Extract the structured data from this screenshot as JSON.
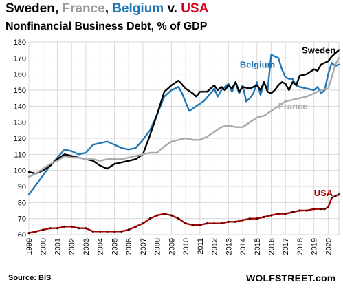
{
  "title_parts": [
    {
      "text": "Sweden",
      "color": "#000000"
    },
    {
      "text": ", ",
      "color": "#000000"
    },
    {
      "text": "France",
      "color": "#9a9a9a"
    },
    {
      "text": ", ",
      "color": "#000000"
    },
    {
      "text": "Belgium",
      "color": "#1f77b4"
    },
    {
      "text": " v. ",
      "color": "#000000"
    },
    {
      "text": "USA",
      "color": "#d0021b"
    }
  ],
  "subtitle": "Nonfinancial Business Debt, % of GDP",
  "source": "Source: BIS",
  "brand": "WOLFSTREET.com",
  "chart_data": {
    "type": "line",
    "title": "Sweden, France, Belgium v. USA",
    "subtitle": "Nonfinancial Business Debt, % of GDP",
    "xlabel": "",
    "ylabel": "",
    "xlim": [
      1999.0,
      2020.75
    ],
    "ylim": [
      60,
      180
    ],
    "yticks": [
      60,
      70,
      80,
      90,
      100,
      110,
      120,
      130,
      140,
      150,
      160,
      170,
      180
    ],
    "xticks": [
      "1999",
      "2000",
      "2001",
      "2002",
      "2003",
      "2004",
      "2005",
      "2006",
      "2007",
      "2008",
      "2009",
      "2010",
      "2011",
      "2012",
      "2013",
      "2014",
      "2015",
      "2016",
      "2017",
      "2018",
      "2019",
      "2020"
    ],
    "grid": true,
    "legend": "inline labels",
    "series": [
      {
        "name": "Belgium",
        "color": "#1f77b4",
        "x": [
          1999.0,
          1999.5,
          2000.0,
          2000.5,
          2001.0,
          2001.5,
          2002.0,
          2002.5,
          2003.0,
          2003.5,
          2004.0,
          2004.5,
          2005.0,
          2005.5,
          2006.0,
          2006.5,
          2007.0,
          2007.5,
          2008.0,
          2008.5,
          2009.0,
          2009.5,
          2009.75,
          2010.25,
          2010.75,
          2011.25,
          2011.75,
          2012.0,
          2012.25,
          2012.5,
          2012.75,
          2013.0,
          2013.25,
          2013.5,
          2013.75,
          2014.0,
          2014.25,
          2014.5,
          2014.75,
          2015.0,
          2015.25,
          2015.5,
          2015.75,
          2016.0,
          2016.25,
          2016.5,
          2016.75,
          2017.0,
          2017.25,
          2017.5,
          2017.75,
          2018.0,
          2018.5,
          2019.0,
          2019.25,
          2019.5,
          2019.75,
          2020.0,
          2020.25,
          2020.5,
          2020.75
        ],
        "values": [
          85,
          91,
          97,
          103,
          108,
          113,
          112,
          110,
          111,
          116,
          117,
          118,
          116,
          114,
          113,
          114,
          119,
          125,
          135,
          146,
          150,
          152,
          148,
          137,
          140,
          143,
          148,
          151,
          146,
          150,
          152,
          154,
          149,
          155,
          148,
          153,
          143,
          145,
          148,
          155,
          147,
          155,
          150,
          172,
          171,
          170,
          163,
          158,
          157,
          157,
          153,
          152,
          151,
          150,
          152,
          148,
          150,
          160,
          167,
          165,
          166
        ]
      },
      {
        "name": "Sweden",
        "color": "#000000",
        "x": [
          1999.0,
          1999.5,
          2000.0,
          2000.5,
          2001.0,
          2001.5,
          2002.0,
          2002.5,
          2003.0,
          2003.5,
          2004.0,
          2004.5,
          2005.0,
          2005.5,
          2006.0,
          2006.5,
          2007.0,
          2007.5,
          2008.0,
          2008.5,
          2009.0,
          2009.5,
          2010.0,
          2010.5,
          2010.75,
          2011.0,
          2011.5,
          2012.0,
          2012.25,
          2012.5,
          2012.75,
          2013.0,
          2013.25,
          2013.5,
          2013.75,
          2014.0,
          2014.5,
          2015.0,
          2015.25,
          2015.5,
          2015.75,
          2016.0,
          2016.25,
          2016.5,
          2016.75,
          2017.0,
          2017.25,
          2017.5,
          2017.75,
          2018.0,
          2018.5,
          2019.0,
          2019.25,
          2019.5,
          2019.75,
          2020.0,
          2020.25,
          2020.5,
          2020.75
        ],
        "values": [
          99,
          98,
          100,
          103,
          107,
          110,
          109,
          108,
          107,
          106,
          103,
          101,
          104,
          105,
          106,
          107,
          110,
          122,
          135,
          149,
          153,
          156,
          151,
          148,
          146,
          149,
          149,
          153,
          150,
          152,
          150,
          153,
          151,
          155,
          149,
          152,
          151,
          153,
          150,
          155,
          149,
          148,
          150,
          153,
          155,
          154,
          150,
          155,
          153,
          159,
          160,
          163,
          162,
          166,
          167,
          168,
          171,
          173,
          175
        ]
      },
      {
        "name": "France",
        "color": "#a9a9a9",
        "x": [
          1999.0,
          1999.5,
          2000.0,
          2000.5,
          2001.0,
          2001.5,
          2002.0,
          2002.5,
          2003.0,
          2003.5,
          2004.0,
          2004.5,
          2005.0,
          2005.5,
          2006.0,
          2006.5,
          2007.0,
          2007.5,
          2008.0,
          2008.5,
          2009.0,
          2009.5,
          2010.0,
          2010.5,
          2011.0,
          2011.5,
          2012.0,
          2012.5,
          2013.0,
          2013.5,
          2014.0,
          2014.5,
          2015.0,
          2015.5,
          2016.0,
          2016.5,
          2017.0,
          2017.5,
          2018.0,
          2018.5,
          2019.0,
          2019.5,
          2020.0,
          2020.25,
          2020.5,
          2020.75
        ],
        "values": [
          96,
          98,
          101,
          104,
          106,
          109,
          108,
          108,
          107,
          107,
          106,
          107,
          107,
          107,
          108,
          109,
          110,
          111,
          111,
          115,
          118,
          119,
          120,
          119,
          119,
          121,
          124,
          127,
          128,
          127,
          127,
          130,
          133,
          134,
          137,
          140,
          143,
          144,
          145,
          146,
          148,
          150,
          151,
          158,
          166,
          170
        ]
      },
      {
        "name": "USA",
        "color": "#b00000",
        "x": [
          1999.0,
          1999.5,
          2000.0,
          2000.5,
          2001.0,
          2001.5,
          2002.0,
          2002.5,
          2003.0,
          2003.5,
          2004.0,
          2004.5,
          2005.0,
          2005.5,
          2006.0,
          2006.5,
          2007.0,
          2007.5,
          2008.0,
          2008.5,
          2009.0,
          2009.5,
          2010.0,
          2010.5,
          2011.0,
          2011.5,
          2012.0,
          2012.5,
          2013.0,
          2013.5,
          2014.0,
          2014.5,
          2015.0,
          2015.5,
          2016.0,
          2016.5,
          2017.0,
          2017.5,
          2018.0,
          2018.5,
          2019.0,
          2019.5,
          2019.75,
          2020.0,
          2020.25,
          2020.5,
          2020.75
        ],
        "values": [
          61,
          62,
          63,
          64,
          64,
          65,
          65,
          64,
          64,
          62,
          62,
          62,
          62,
          62,
          63,
          65,
          67,
          70,
          72,
          73,
          72,
          70,
          67,
          66,
          66,
          67,
          67,
          67,
          68,
          68,
          69,
          70,
          70,
          71,
          72,
          73,
          73,
          74,
          75,
          75,
          76,
          76,
          76,
          77,
          83,
          84,
          85
        ]
      }
    ],
    "labels": [
      {
        "text": "Belgium",
        "series": "Belgium",
        "x": 2013.8,
        "y": 164
      },
      {
        "text": "Sweden",
        "series": "Sweden",
        "x": 2018.15,
        "y": 173
      },
      {
        "text": "France",
        "series": "France",
        "x": 2016.5,
        "y": 138
      },
      {
        "text": "USA",
        "series": "USA",
        "x": 2019.0,
        "y": 84
      }
    ]
  }
}
